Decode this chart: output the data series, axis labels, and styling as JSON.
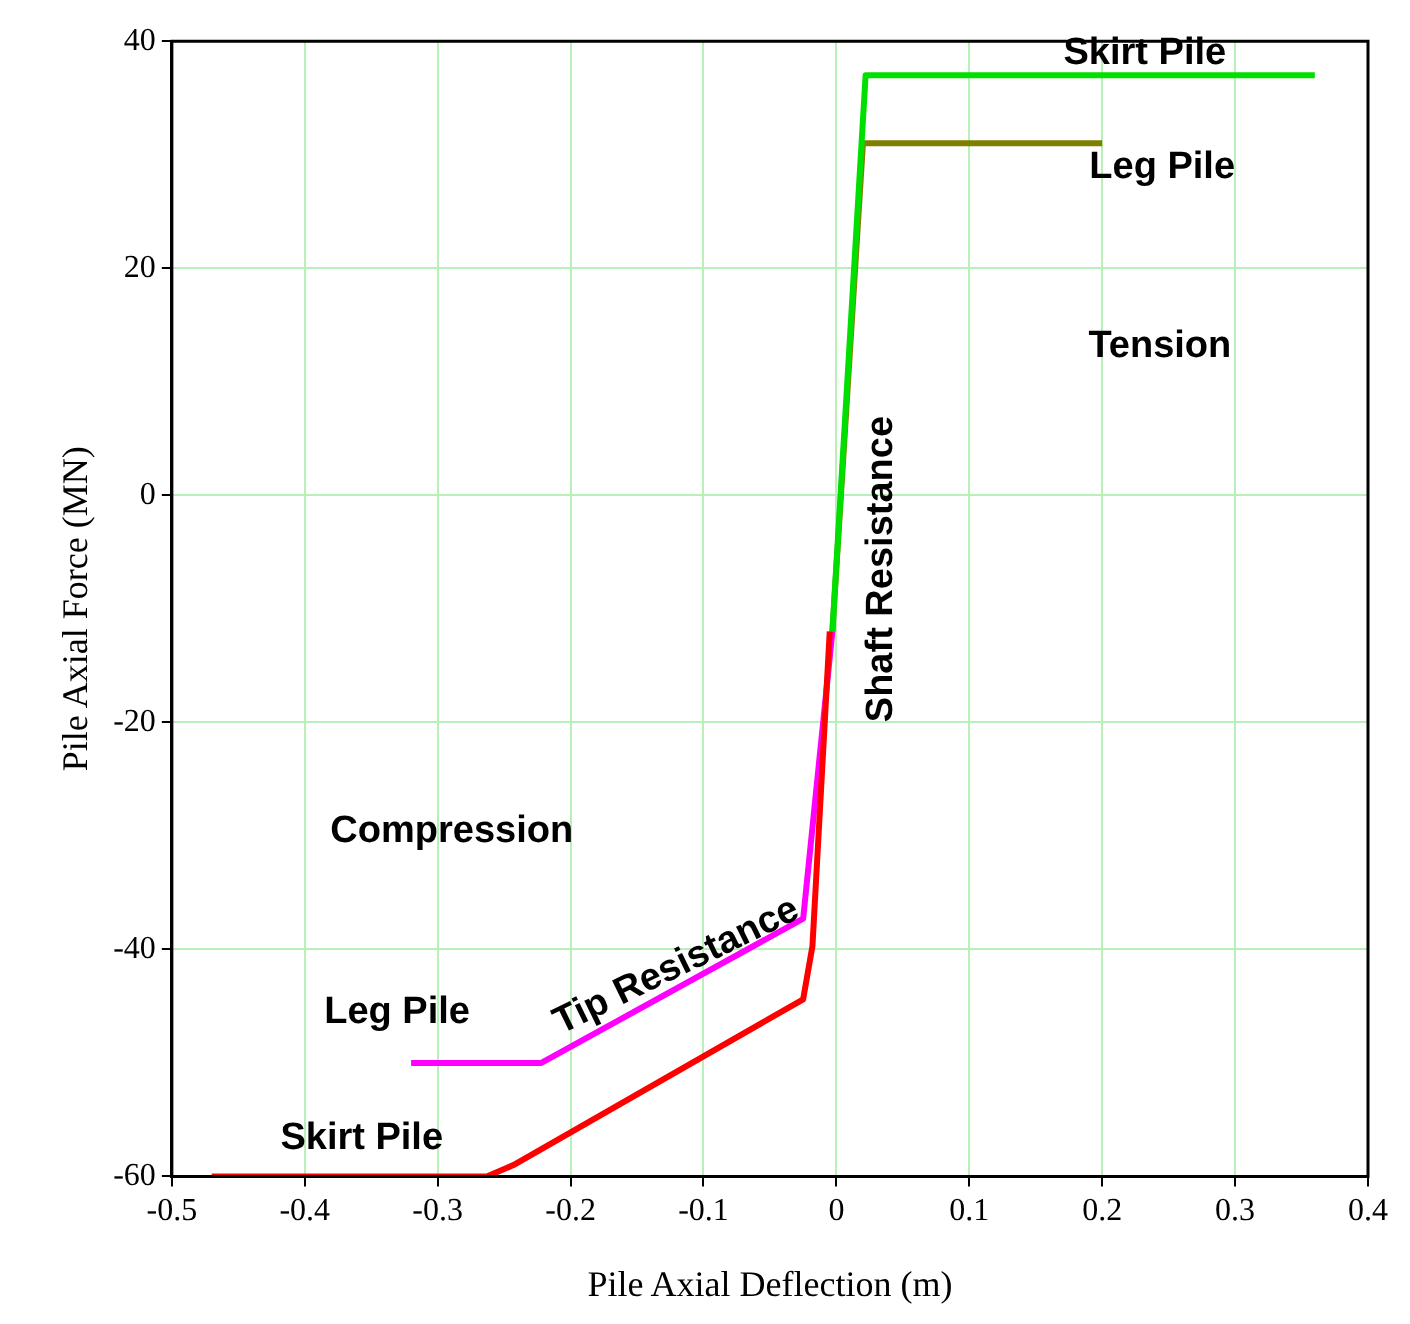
{
  "chart_data": {
    "type": "line",
    "xlabel": "Pile Axial Deflection (m)",
    "ylabel": "Pile Axial Force (MN)",
    "xlim": [
      -0.5,
      0.4
    ],
    "xticks": [
      -0.5,
      -0.4,
      -0.3,
      -0.2,
      -0.1,
      0,
      0.1,
      0.2,
      0.3,
      0.4
    ],
    "ylim": [
      -60,
      40
    ],
    "yticks": [
      -60,
      -40,
      -20,
      0,
      20,
      40
    ],
    "grid": true,
    "legend": false,
    "marker": "none",
    "line_style": "solid",
    "series": [
      {
        "name": "Skirt Pile",
        "color": "#ff0000",
        "x": [
          -0.47,
          -0.263,
          -0.243,
          -0.025,
          -0.018,
          -0.005
        ],
        "values": [
          -60,
          -60,
          -59,
          -44.4,
          -39.7,
          -12
        ]
      },
      {
        "name": "Leg Pile",
        "color": "#ff00ff",
        "x": [
          -0.32,
          -0.222,
          -0.025,
          -0.003
        ],
        "values": [
          -50,
          -50,
          -37.3,
          -12
        ]
      },
      {
        "name": "Skirt Pile",
        "color": "#00e000",
        "x": [
          -0.003,
          0.022,
          0.36
        ],
        "values": [
          -12,
          37,
          37
        ]
      },
      {
        "name": "Leg Pile",
        "color": "#808000",
        "x": [
          -0.003,
          0.02,
          0.2
        ],
        "values": [
          -12,
          31,
          31
        ]
      }
    ],
    "annotations": [
      "Tension",
      "Compression",
      "Tip Resistance",
      "Shaft Resistance"
    ]
  }
}
